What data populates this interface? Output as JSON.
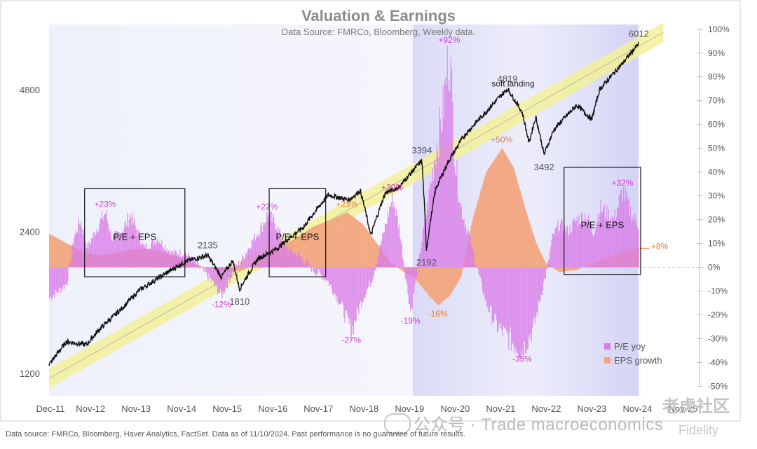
{
  "title": "Valuation & Earnings",
  "subtitle": "Data Source: FMRCo, Bloomberg,  Weekly data.",
  "footnote": "Data source: FMRCo, Bloomberg, Haver Analytics, FactSet. Data as of 11/10/2024. Past performance is no guarantee of future results.",
  "watermark_text": "公众号 · Trade macroeconomics",
  "watermark_corner": "老虎社区",
  "watermark_corner2": "Fidelity",
  "colors": {
    "spx_line": "#111111",
    "trend_band": "#f3f09a",
    "pe_yoy": "#d97ce8",
    "eps_growth": "#f2a57c",
    "pe_label": "#d63ad6",
    "eps_label": "#ee7d2e",
    "shade": "#c9c9f4",
    "axis_text": "#555555"
  },
  "chart_data": {
    "type": "line",
    "x_axis": {
      "tick_labels": [
        "Dec-11",
        "Nov-12",
        "Nov-13",
        "Nov-14",
        "Nov-15",
        "Nov-16",
        "Nov-17",
        "Nov-18",
        "Nov-19",
        "Nov-20",
        "Nov-21",
        "Nov-22",
        "Nov-23",
        "Nov-24",
        "Nov-25"
      ],
      "tick_years": [
        2011.92,
        2012.83,
        2013.83,
        2014.83,
        2015.83,
        2016.83,
        2017.83,
        2018.83,
        2019.83,
        2020.83,
        2021.83,
        2022.83,
        2023.83,
        2024.83,
        2025.83
      ],
      "range": [
        2011.92,
        2026.3
      ]
    },
    "left_axis": {
      "scale": "log",
      "tick_labels": [
        "1200",
        "2400",
        "4800"
      ],
      "ticks": [
        1200,
        2400,
        4800
      ],
      "range": [
        1075,
        6600
      ]
    },
    "right_axis": {
      "tick_labels": [
        "100%",
        "90%",
        "80%",
        "70%",
        "60%",
        "50%",
        "40%",
        "30%",
        "20%",
        "10%",
        "0%",
        "-10%",
        "-20%",
        "-30%",
        "-40%",
        "-50%"
      ],
      "ticks": [
        100,
        90,
        80,
        70,
        60,
        50,
        40,
        30,
        20,
        10,
        0,
        -10,
        -20,
        -30,
        -40,
        -50
      ],
      "range": [
        -54,
        102
      ]
    },
    "shaded_regions": [
      [
        2019.9,
        2024.85
      ]
    ],
    "series": [
      {
        "name": "S&P 500",
        "axis": "left",
        "kind": "line",
        "points": [
          [
            2011.92,
            1250
          ],
          [
            2012.3,
            1400
          ],
          [
            2012.75,
            1380
          ],
          [
            2013.0,
            1480
          ],
          [
            2013.5,
            1640
          ],
          [
            2013.9,
            1800
          ],
          [
            2014.5,
            1960
          ],
          [
            2014.9,
            2070
          ],
          [
            2015.4,
            2135
          ],
          [
            2015.7,
            1920
          ],
          [
            2015.95,
            2080
          ],
          [
            2016.1,
            1810
          ],
          [
            2016.5,
            2100
          ],
          [
            2016.9,
            2200
          ],
          [
            2017.5,
            2450
          ],
          [
            2018.05,
            2870
          ],
          [
            2018.5,
            2800
          ],
          [
            2018.75,
            2930
          ],
          [
            2018.98,
            2350
          ],
          [
            2019.3,
            2900
          ],
          [
            2019.6,
            2980
          ],
          [
            2020.1,
            3394
          ],
          [
            2020.2,
            2192
          ],
          [
            2020.4,
            2950
          ],
          [
            2020.7,
            3400
          ],
          [
            2021.0,
            3800
          ],
          [
            2021.5,
            4300
          ],
          [
            2021.98,
            4819
          ],
          [
            2022.3,
            4300
          ],
          [
            2022.45,
            3700
          ],
          [
            2022.6,
            4200
          ],
          [
            2022.78,
            3492
          ],
          [
            2023.0,
            3950
          ],
          [
            2023.5,
            4450
          ],
          [
            2023.83,
            4150
          ],
          [
            2024.0,
            4800
          ],
          [
            2024.5,
            5450
          ],
          [
            2024.86,
            6012
          ]
        ],
        "labels": [
          {
            "text": "2135",
            "x": 2015.4,
            "y": 2135
          },
          {
            "text": "1810",
            "x": 2016.1,
            "y": 1810
          },
          {
            "text": "3394",
            "x": 2020.1,
            "y": 3394
          },
          {
            "text": "2192",
            "x": 2020.2,
            "y": 2192
          },
          {
            "text": "4819",
            "x": 2021.98,
            "y": 4819
          },
          {
            "text": "3492",
            "x": 2022.78,
            "y": 3492
          },
          {
            "text": "6012",
            "x": 2024.86,
            "y": 6012
          }
        ]
      },
      {
        "name": "P/E yoy",
        "axis": "right",
        "kind": "bar",
        "points": [
          [
            2011.92,
            -13
          ],
          [
            2012.3,
            -7
          ],
          [
            2012.45,
            12
          ],
          [
            2012.6,
            20
          ],
          [
            2012.75,
            8
          ],
          [
            2013.0,
            18
          ],
          [
            2013.15,
            23
          ],
          [
            2013.3,
            12
          ],
          [
            2013.5,
            15
          ],
          [
            2013.7,
            22
          ],
          [
            2014.0,
            8
          ],
          [
            2014.3,
            12
          ],
          [
            2014.6,
            6
          ],
          [
            2014.9,
            6
          ],
          [
            2015.2,
            0
          ],
          [
            2015.45,
            -5
          ],
          [
            2015.7,
            -12
          ],
          [
            2015.95,
            -2
          ],
          [
            2016.2,
            5
          ],
          [
            2016.4,
            12
          ],
          [
            2016.55,
            16
          ],
          [
            2016.7,
            22
          ],
          [
            2016.9,
            18
          ],
          [
            2017.1,
            8
          ],
          [
            2017.4,
            5
          ],
          [
            2017.7,
            -1
          ],
          [
            2018.0,
            -5
          ],
          [
            2018.3,
            -15
          ],
          [
            2018.55,
            -27
          ],
          [
            2018.75,
            -15
          ],
          [
            2019.0,
            -5
          ],
          [
            2019.3,
            18
          ],
          [
            2019.45,
            30
          ],
          [
            2019.6,
            16
          ],
          [
            2019.75,
            -6
          ],
          [
            2019.85,
            -19
          ],
          [
            2020.0,
            0
          ],
          [
            2020.1,
            12
          ],
          [
            2020.25,
            30
          ],
          [
            2020.4,
            50
          ],
          [
            2020.55,
            65
          ],
          [
            2020.7,
            92
          ],
          [
            2020.82,
            45
          ],
          [
            2020.95,
            25
          ],
          [
            2021.1,
            15
          ],
          [
            2021.3,
            0
          ],
          [
            2021.5,
            -15
          ],
          [
            2021.75,
            -25
          ],
          [
            2022.0,
            -30
          ],
          [
            2022.3,
            -35
          ],
          [
            2022.55,
            -25
          ],
          [
            2022.75,
            -8
          ],
          [
            2022.85,
            0
          ],
          [
            2022.95,
            12
          ],
          [
            2023.1,
            18
          ],
          [
            2023.3,
            15
          ],
          [
            2023.5,
            20
          ],
          [
            2023.7,
            22
          ],
          [
            2023.85,
            14
          ],
          [
            2024.0,
            25
          ],
          [
            2024.3,
            20
          ],
          [
            2024.5,
            32
          ],
          [
            2024.7,
            22
          ],
          [
            2024.85,
            18
          ]
        ],
        "labels": [
          {
            "text": "+23%",
            "x": 2013.15,
            "y": 23
          },
          {
            "text": "-12%",
            "x": 2015.7,
            "y": -12
          },
          {
            "text": "+22%",
            "x": 2016.7,
            "y": 22
          },
          {
            "text": "-27%",
            "x": 2018.55,
            "y": -27
          },
          {
            "text": "+30%",
            "x": 2019.45,
            "y": 30
          },
          {
            "text": "-19%",
            "x": 2019.85,
            "y": -19
          },
          {
            "text": "+92%",
            "x": 2020.7,
            "y": 92
          },
          {
            "text": "-35%",
            "x": 2022.3,
            "y": -35
          },
          {
            "text": "+32%",
            "x": 2024.5,
            "y": 32
          }
        ]
      },
      {
        "name": "EPS growth",
        "axis": "right",
        "kind": "area",
        "points": [
          [
            2011.92,
            14
          ],
          [
            2012.3,
            10
          ],
          [
            2012.7,
            6
          ],
          [
            2013.1,
            5
          ],
          [
            2013.6,
            7
          ],
          [
            2014.0,
            8
          ],
          [
            2014.5,
            6
          ],
          [
            2014.9,
            3
          ],
          [
            2015.3,
            0
          ],
          [
            2015.6,
            -1
          ],
          [
            2015.9,
            -2
          ],
          [
            2016.2,
            -1
          ],
          [
            2016.5,
            4
          ],
          [
            2016.9,
            8
          ],
          [
            2017.3,
            12
          ],
          [
            2017.7,
            17
          ],
          [
            2018.1,
            20
          ],
          [
            2018.45,
            23
          ],
          [
            2018.8,
            18
          ],
          [
            2019.1,
            10
          ],
          [
            2019.4,
            2
          ],
          [
            2019.7,
            -2
          ],
          [
            2019.95,
            -5
          ],
          [
            2020.25,
            -12
          ],
          [
            2020.45,
            -16
          ],
          [
            2020.7,
            -12
          ],
          [
            2020.95,
            -4
          ],
          [
            2021.2,
            20
          ],
          [
            2021.5,
            40
          ],
          [
            2021.85,
            50
          ],
          [
            2022.1,
            42
          ],
          [
            2022.4,
            22
          ],
          [
            2022.6,
            10
          ],
          [
            2022.8,
            2
          ],
          [
            2023.1,
            -2
          ],
          [
            2023.5,
            -1
          ],
          [
            2023.9,
            2
          ],
          [
            2024.3,
            5
          ],
          [
            2024.6,
            7
          ],
          [
            2024.85,
            8
          ]
        ],
        "labels": [
          {
            "text": "+23%",
            "x": 2018.45,
            "y": 23
          },
          {
            "text": "-16%",
            "x": 2020.45,
            "y": -16
          },
          {
            "text": "+50%",
            "x": 2021.85,
            "y": 50
          },
          {
            "text": "+8%",
            "x": 2024.85,
            "y": 8
          }
        ]
      }
    ],
    "boxes": [
      {
        "label": "P/E + EPS",
        "x0": 2012.7,
        "x1": 2014.9,
        "y0": -4,
        "y1": 33
      },
      {
        "label": "P/E + EPS",
        "x0": 2016.75,
        "x1": 2017.99,
        "y0": -4,
        "y1": 33
      },
      {
        "label": "P/E + EPS",
        "x0": 2023.22,
        "x1": 2024.9,
        "y0": -3,
        "y1": 42
      }
    ],
    "annotations": [
      {
        "text": "soft landing",
        "x": 2022.1,
        "y": 76
      }
    ],
    "legend": {
      "placement": "bottom-right",
      "items": [
        {
          "name": "P/E yoy"
        },
        {
          "name": "EPS growth"
        }
      ]
    }
  }
}
